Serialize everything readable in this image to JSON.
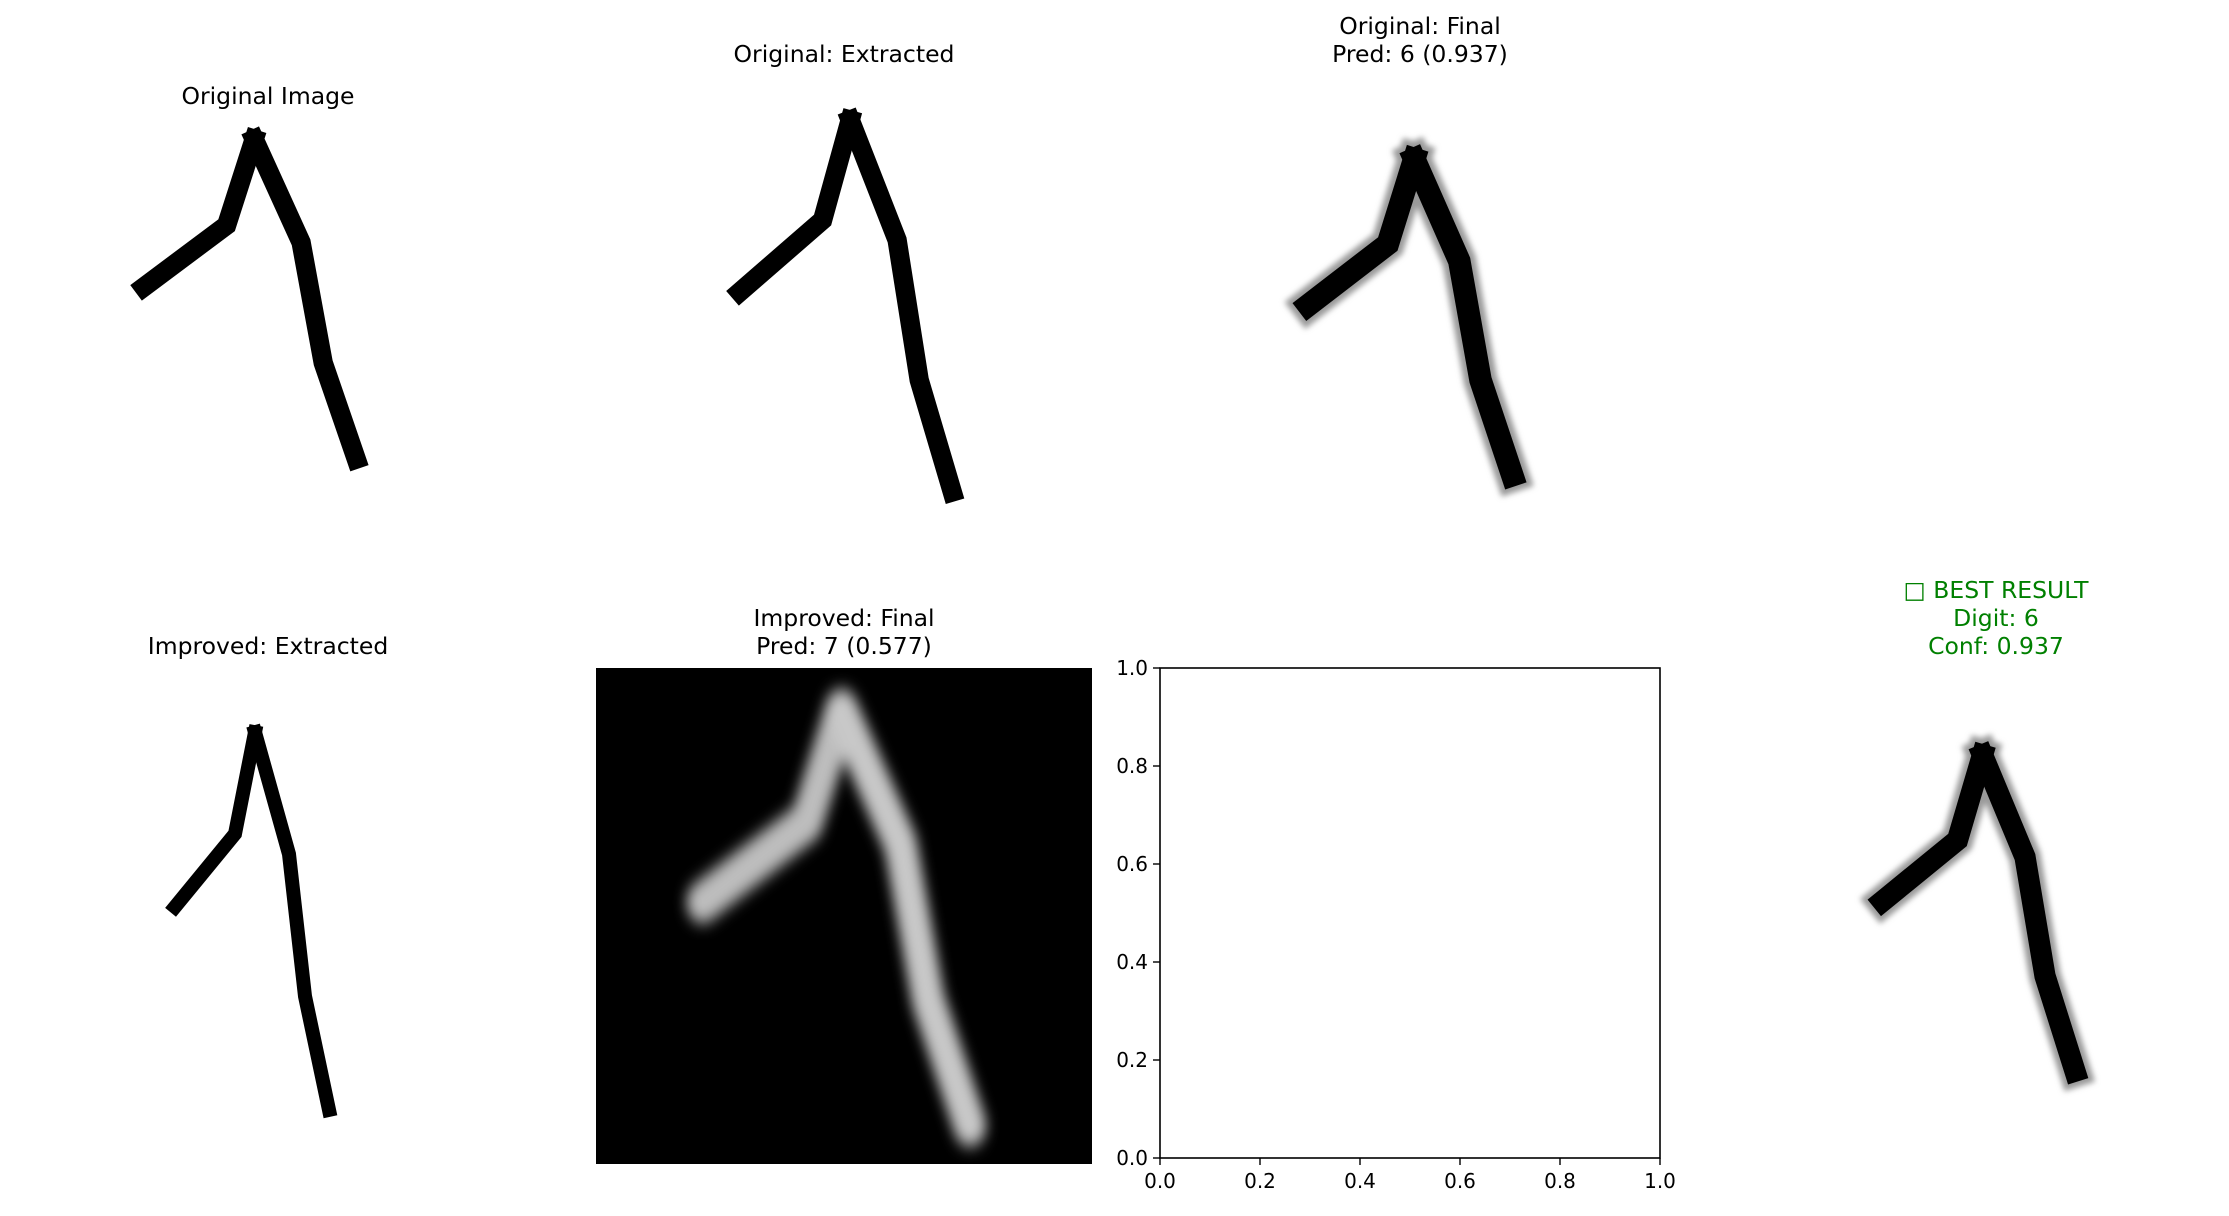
{
  "figure": {
    "panels": [
      {
        "id": "original-image",
        "title": "Original Image",
        "kind": "digit-image",
        "style": "thin"
      },
      {
        "id": "original-extracted",
        "title": "Original: Extracted",
        "kind": "digit-image",
        "style": "thin"
      },
      {
        "id": "original-final",
        "title": "Original: Final\nPred: 6 (0.937)",
        "kind": "digit-image",
        "style": "blurred-dark-on-light",
        "pred_digit": 6,
        "confidence": 0.937
      },
      {
        "id": "improved-extracted",
        "title": "Improved: Extracted",
        "kind": "digit-image",
        "style": "thin"
      },
      {
        "id": "improved-final",
        "title": "Improved: Final\nPred: 7 (0.577)",
        "kind": "digit-image",
        "style": "light-on-dark",
        "pred_digit": 7,
        "confidence": 0.577
      },
      {
        "id": "empty-axes",
        "title": "",
        "kind": "empty-axes"
      },
      {
        "id": "best-result",
        "title": "□ BEST RESULT\nDigit: 6\nConf: 0.937",
        "kind": "digit-image",
        "style": "blurred-dark-on-light",
        "title_color": "#008000",
        "digit": 6,
        "confidence": 0.937
      }
    ]
  },
  "chart_data": {
    "type": "scatter",
    "title": "",
    "xlabel": "",
    "ylabel": "",
    "xlim": [
      0.0,
      1.0
    ],
    "ylim": [
      0.0,
      1.0
    ],
    "xticks": [
      "0.0",
      "0.2",
      "0.4",
      "0.6",
      "0.8",
      "1.0"
    ],
    "yticks": [
      "0.0",
      "0.2",
      "0.4",
      "0.6",
      "0.8",
      "1.0"
    ],
    "series": [],
    "grid": false
  }
}
